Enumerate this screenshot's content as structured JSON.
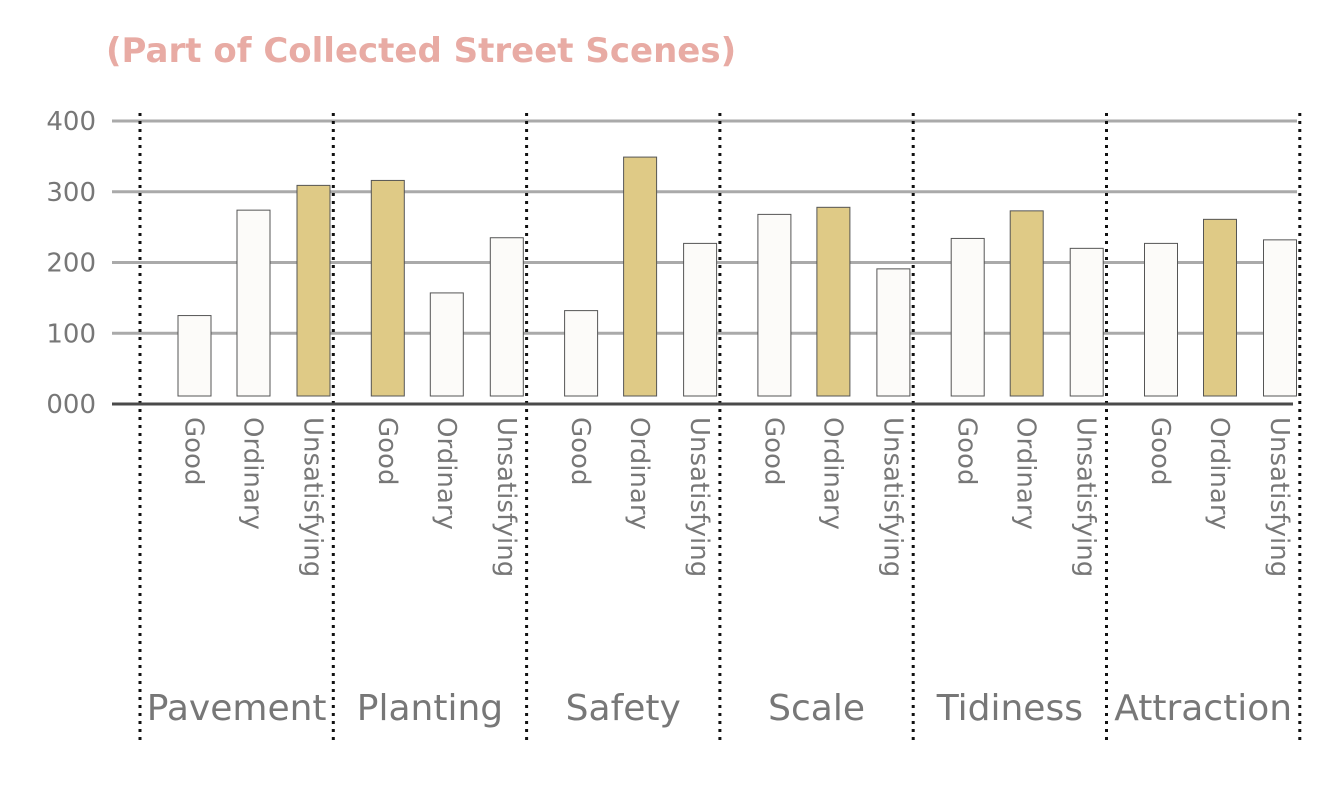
{
  "chart_data": {
    "type": "bar",
    "title": "(Part of Collected Street Scenes)",
    "xlabel": "",
    "ylabel": "",
    "ylim": [
      0,
      400
    ],
    "y_ticks": [
      0,
      100,
      200,
      300,
      400
    ],
    "y_tick_labels": [
      "000",
      "100",
      "200",
      "300",
      "400"
    ],
    "grid": true,
    "legend": "none",
    "groups": [
      {
        "name": "Pavement",
        "categories": [
          "Good",
          "Ordinary",
          "Unsatisfying"
        ],
        "values": [
          125,
          274,
          309
        ],
        "highlight": [
          false,
          false,
          true
        ]
      },
      {
        "name": "Planting",
        "categories": [
          "Good",
          "Ordinary",
          "Unsatisfying"
        ],
        "values": [
          316,
          157,
          235
        ],
        "highlight": [
          true,
          false,
          false
        ]
      },
      {
        "name": "Safety",
        "categories": [
          "Good",
          "Ordinary",
          "Unsatisfying"
        ],
        "values": [
          132,
          349,
          227
        ],
        "highlight": [
          false,
          true,
          false
        ]
      },
      {
        "name": "Scale",
        "categories": [
          "Good",
          "Ordinary",
          "Unsatisfying"
        ],
        "values": [
          268,
          278,
          191
        ],
        "highlight": [
          false,
          true,
          false
        ]
      },
      {
        "name": "Tidiness",
        "categories": [
          "Good",
          "Ordinary",
          "Unsatisfying"
        ],
        "values": [
          234,
          273,
          220
        ],
        "highlight": [
          false,
          true,
          false
        ]
      },
      {
        "name": "Attraction",
        "categories": [
          "Good",
          "Ordinary",
          "Unsatisfying"
        ],
        "values": [
          227,
          261,
          232
        ],
        "highlight": [
          false,
          true,
          false
        ]
      }
    ]
  },
  "colors": {
    "highlight_bar": "#dfca86",
    "plain_bar": "#fcfbf9",
    "bar_stroke": "#555555",
    "gridline": "#aaaaaa",
    "axis": "#4a4a4a",
    "divider": "#111111",
    "text": "#777777",
    "title": "#e8aba4"
  }
}
